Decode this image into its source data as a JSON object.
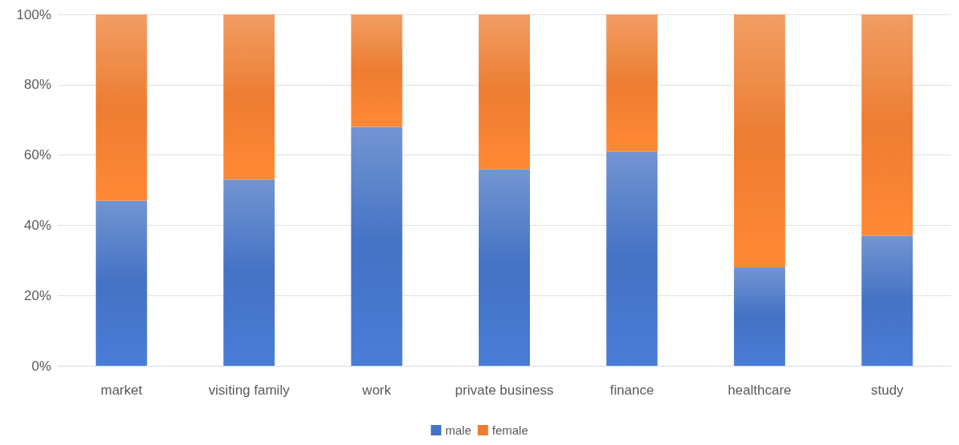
{
  "chart_data": {
    "type": "bar",
    "stacked": true,
    "categories": [
      "market",
      "visiting family",
      "work",
      "private business",
      "finance",
      "healthcare",
      "study"
    ],
    "series": [
      {
        "name": "male",
        "color": "#4472c4",
        "values": [
          47,
          53,
          68,
          56,
          61,
          28,
          37
        ]
      },
      {
        "name": "female",
        "color": "#ed7d31",
        "values": [
          53,
          47,
          32,
          44,
          39,
          72,
          63
        ]
      }
    ],
    "ylim": [
      0,
      100
    ],
    "yticks": [
      {
        "value": 0,
        "label": "0%"
      },
      {
        "value": 20,
        "label": "20%"
      },
      {
        "value": 40,
        "label": "40%"
      },
      {
        "value": 60,
        "label": "60%"
      },
      {
        "value": 80,
        "label": "80%"
      },
      {
        "value": 100,
        "label": "100%"
      }
    ],
    "grid": "y",
    "legend": "bottom"
  }
}
